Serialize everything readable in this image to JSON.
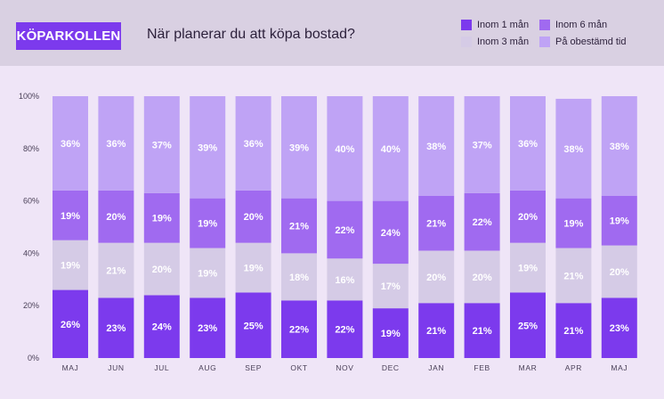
{
  "header": {
    "logo": "KÖPARKOLLEN",
    "title": "När planerar du att köpa bostad?"
  },
  "legend": [
    {
      "label": "Inom 1 mån",
      "color": "#7c3aed"
    },
    {
      "label": "Inom 6 mån",
      "color": "#a06af0"
    },
    {
      "label": "Inom 3 mån",
      "color": "#d5cbe6"
    },
    {
      "label": "På obestämd tid",
      "color": "#bfa3f5"
    }
  ],
  "colors": {
    "header_bg": "#d9d0e2",
    "plot_bg": "#efe5f7",
    "logo_bg": "#7c3aed"
  },
  "chart_data": {
    "type": "bar",
    "stacked": true,
    "title": "När planerar du att köpa bostad?",
    "xlabel": "",
    "ylabel": "",
    "ylim": [
      0,
      100
    ],
    "yticks": [
      "0%",
      "20%",
      "40%",
      "60%",
      "80%",
      "100%"
    ],
    "categories": [
      "MAJ",
      "JUN",
      "JUL",
      "AUG",
      "SEP",
      "OKT",
      "NOV",
      "DEC",
      "JAN",
      "FEB",
      "MAR",
      "APR",
      "MAJ"
    ],
    "series": [
      {
        "name": "Inom 1 mån",
        "color": "#7c3aed",
        "label_color": "#ffffff",
        "values": [
          26,
          23,
          24,
          23,
          25,
          22,
          22,
          19,
          21,
          21,
          25,
          21,
          23
        ]
      },
      {
        "name": "Inom 3 mån",
        "color": "#d5cbe6",
        "label_color": "#ffffff",
        "values": [
          19,
          21,
          20,
          19,
          19,
          18,
          16,
          17,
          20,
          20,
          19,
          21,
          20
        ]
      },
      {
        "name": "Inom 6 mån",
        "color": "#a06af0",
        "label_color": "#ffffff",
        "values": [
          19,
          20,
          19,
          19,
          20,
          21,
          22,
          24,
          21,
          22,
          20,
          19,
          19
        ]
      },
      {
        "name": "På obestämd tid",
        "color": "#bfa3f5",
        "label_color": "#ffffff",
        "values": [
          36,
          36,
          37,
          39,
          36,
          39,
          40,
          40,
          38,
          37,
          36,
          38,
          38
        ]
      }
    ],
    "value_suffix": "%"
  }
}
